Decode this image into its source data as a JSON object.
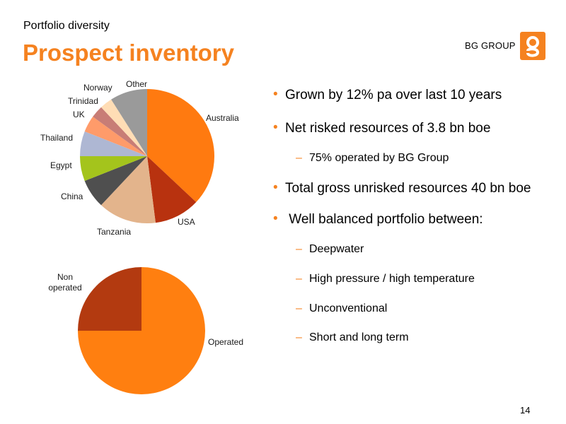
{
  "header": {
    "subtitle": "Portfolio diversity",
    "title": "Prospect inventory",
    "brand": "BG GROUP",
    "logo_icon": "bg-logo-icon",
    "accent_color": "#F58220"
  },
  "chart_data": [
    {
      "type": "pie",
      "categories": [
        "Australia",
        "USA",
        "Tanzania",
        "China",
        "Egypt",
        "Thailand",
        "UK",
        "Trinidad",
        "Norway",
        "Other"
      ],
      "values": [
        37,
        11,
        14,
        7,
        6,
        6,
        4,
        3,
        3,
        9
      ],
      "colors": [
        "#FF7A10",
        "#B8320F",
        "#E3B48C",
        "#4F4F4F",
        "#A4C41C",
        "#AEB7D3",
        "#FF9B6A",
        "#C87D76",
        "#FFDDB5",
        "#9A9A9A"
      ]
    },
    {
      "type": "pie",
      "categories": [
        "Operated",
        "Non operated"
      ],
      "values": [
        75,
        25
      ],
      "colors": [
        "#FF7F10",
        "#B33A10"
      ]
    }
  ],
  "bullets": [
    {
      "text": "Grown by 12% pa over last 10 years",
      "sub": []
    },
    {
      "text": "Net risked resources of 3.8 bn boe",
      "sub": [
        "75% operated by BG Group"
      ]
    },
    {
      "text": "Total gross unrisked resources 40 bn boe",
      "sub": []
    },
    {
      "text": " Well balanced portfolio between:",
      "sub": [
        "Deepwater",
        "High pressure / high temperature",
        "Unconventional",
        "Short and long term"
      ]
    }
  ],
  "page_number": "14"
}
